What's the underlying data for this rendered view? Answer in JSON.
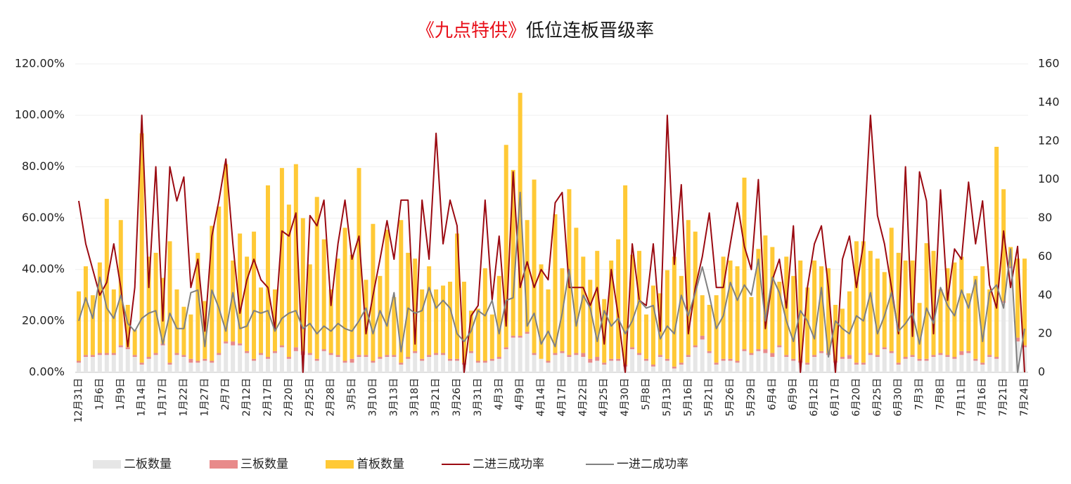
{
  "chart_data": {
    "type": "bar",
    "title": [
      "《九点特供》",
      "低位连板晋级率"
    ],
    "title_colors": [
      "#e8111b",
      "#1a1a1a"
    ],
    "categories": [
      "12月31日",
      null,
      null,
      "1月6日",
      null,
      null,
      "1月9日",
      null,
      null,
      "1月14日",
      null,
      null,
      "1月17日",
      null,
      null,
      "1月22日",
      null,
      null,
      "1月27日",
      null,
      null,
      "2月7日",
      null,
      null,
      "2月12日",
      null,
      null,
      "2月17日",
      null,
      null,
      "2月20日",
      null,
      null,
      "2月25日",
      null,
      null,
      "2月28日",
      null,
      null,
      "3月5日",
      null,
      null,
      "3月10日",
      null,
      null,
      "3月13日",
      null,
      null,
      "3月18日",
      null,
      null,
      "3月21日",
      null,
      null,
      "3月26日",
      null,
      null,
      "3月31日",
      null,
      null,
      "4月3日",
      null,
      null,
      "4月9日",
      null,
      null,
      "4月14日",
      null,
      null,
      "4月17日",
      null,
      null,
      "4月22日",
      null,
      null,
      "4月25日",
      null,
      null,
      "4月30日",
      null,
      null,
      "5月8日",
      null,
      null,
      "5月13日",
      null,
      null,
      "5月16日",
      null,
      null,
      "5月21日",
      null,
      null,
      "5月26日",
      null,
      null,
      "5月29日",
      null,
      null,
      "6月4日",
      null,
      null,
      "6月9日",
      null,
      null,
      "6月12日",
      null,
      null,
      "6月17日",
      null,
      null,
      "6月20日",
      null,
      null,
      "6月25日",
      null,
      null,
      "6月30日",
      null,
      null,
      "7月3日",
      null,
      null,
      "7月8日",
      null,
      null,
      "7月11日",
      null,
      null,
      "7月16日",
      null,
      null,
      "7月21日",
      null,
      null,
      "7月24日"
    ],
    "series": [
      {
        "name": "二板数量",
        "type": "bar",
        "axis": "y2",
        "color": "#e6e6e6",
        "values": [
          5,
          8,
          8,
          9,
          9,
          9,
          13,
          12,
          8,
          4,
          7,
          9,
          14,
          4,
          9,
          8,
          5,
          5,
          6,
          5,
          9,
          15,
          14,
          14,
          10,
          6,
          9,
          7,
          10,
          13,
          7,
          11,
          9,
          9,
          6,
          11,
          9,
          8,
          5,
          5,
          8,
          8,
          5,
          7,
          8,
          8,
          4,
          7,
          10,
          6,
          8,
          9,
          9,
          6,
          6,
          4,
          10,
          5,
          5,
          6,
          7,
          12,
          18,
          18,
          20,
          9,
          7,
          5,
          9,
          10,
          8,
          9,
          8,
          5,
          6,
          4,
          6,
          6,
          3,
          12,
          9,
          6,
          3,
          8,
          6,
          2,
          4,
          8,
          13,
          17,
          10,
          4,
          6,
          6,
          5,
          11,
          9,
          11,
          10,
          8,
          13,
          8,
          6,
          5,
          4,
          8,
          10,
          9,
          5,
          7,
          7,
          4,
          4,
          9,
          8,
          12,
          10,
          4,
          7,
          8,
          6,
          6,
          8,
          9,
          8,
          7,
          9,
          10,
          6,
          4,
          8,
          7,
          36,
          54,
          16,
          13
        ]
      },
      {
        "name": "三板数量",
        "type": "bar",
        "axis": "y2",
        "color": "#e88a8a",
        "values": [
          1,
          1,
          1,
          1,
          1,
          1,
          1,
          1,
          1,
          1,
          1,
          1,
          1,
          1,
          1,
          1,
          2,
          1,
          1,
          1,
          1,
          1,
          2,
          1,
          1,
          1,
          1,
          1,
          1,
          1,
          1,
          2,
          2,
          1,
          1,
          1,
          1,
          1,
          1,
          2,
          1,
          1,
          1,
          1,
          1,
          1,
          1,
          1,
          1,
          1,
          1,
          1,
          1,
          1,
          1,
          1,
          1,
          1,
          1,
          1,
          1,
          1,
          1,
          1,
          1,
          1,
          0,
          1,
          1,
          1,
          1,
          1,
          2,
          2,
          2,
          1,
          1,
          1,
          1,
          1,
          1,
          1,
          1,
          1,
          1,
          1,
          1,
          1,
          1,
          2,
          1,
          1,
          1,
          1,
          1,
          1,
          1,
          1,
          2,
          2,
          1,
          1,
          1,
          1,
          1,
          1,
          1,
          1,
          1,
          1,
          2,
          1,
          1,
          1,
          1,
          1,
          1,
          1,
          1,
          1,
          1,
          1,
          1,
          1,
          1,
          1,
          2,
          1,
          1,
          1,
          1,
          1,
          1,
          1,
          2,
          1
        ]
      },
      {
        "name": "首板数量",
        "type": "bar",
        "axis": "y2",
        "color": "#ffc936",
        "values": [
          36,
          46,
          31,
          47,
          80,
          33,
          65,
          22,
          13,
          119,
          52,
          52,
          34,
          63,
          33,
          25,
          23,
          56,
          30,
          70,
          76,
          92,
          42,
          57,
          49,
          66,
          34,
          89,
          32,
          92,
          79,
          95,
          69,
          46,
          84,
          57,
          33,
          50,
          69,
          54,
          97,
          39,
          71,
          42,
          65,
          30,
          74,
          54,
          48,
          36,
          46,
          33,
          35,
          40,
          65,
          42,
          21,
          27,
          48,
          23,
          42,
          105,
          86,
          126,
          58,
          90,
          49,
          37,
          72,
          43,
          86,
          65,
          50,
          41,
          55,
          33,
          51,
          62,
          93,
          48,
          53,
          23,
          41,
          32,
          46,
          57,
          45,
          70,
          59,
          21,
          24,
          35,
          53,
          51,
          49,
          89,
          29,
          52,
          59,
          55,
          33,
          51,
          43,
          52,
          39,
          49,
          44,
          44,
          29,
          25,
          33,
          63,
          63,
          53,
          50,
          39,
          64,
          57,
          50,
          49,
          29,
          60,
          54,
          33,
          45,
          49,
          49,
          30,
          43,
          50,
          34,
          109,
          58,
          10,
          41,
          45
        ]
      },
      {
        "name": "二进三成功率",
        "type": "line",
        "axis": "y",
        "color": "#9b0a12",
        "values": [
          66.7,
          50,
          40,
          30,
          35,
          50,
          33,
          10,
          33,
          100,
          33,
          80,
          20,
          80,
          66.7,
          76,
          33,
          44,
          16,
          53,
          66.7,
          83,
          50,
          23,
          36,
          44,
          36,
          33,
          17,
          55,
          53,
          62,
          0,
          61,
          57,
          67,
          26,
          50,
          67,
          44,
          53,
          15,
          30,
          44,
          59,
          44,
          67,
          67,
          11,
          67,
          44,
          93,
          50,
          67,
          57,
          0,
          22,
          26,
          67,
          28,
          53,
          18,
          78,
          33,
          43,
          33,
          40,
          36,
          66,
          70,
          33,
          33,
          33,
          26,
          33,
          11,
          40,
          22,
          0,
          50,
          28,
          26,
          50,
          16,
          100,
          42,
          73,
          15,
          33,
          45,
          62,
          33,
          33,
          50,
          66,
          49,
          40,
          75,
          17,
          36,
          44,
          25,
          57,
          0,
          33,
          50,
          57,
          33,
          0,
          44,
          53,
          33,
          50,
          100,
          61,
          50,
          33,
          15,
          80,
          14,
          78,
          66.7,
          15,
          71,
          28,
          48,
          44,
          74,
          50,
          66.7,
          34,
          25,
          55,
          33,
          49,
          0
        ]
      },
      {
        "name": "一进二成功率",
        "type": "line",
        "axis": "y",
        "color": "#808080",
        "values": [
          20,
          29,
          21,
          37,
          25,
          21,
          30,
          19,
          16,
          21,
          23,
          24,
          11,
          23,
          17,
          17,
          31,
          32,
          10,
          32,
          25,
          16,
          31,
          17,
          18,
          24,
          23,
          24,
          16,
          21,
          23,
          24,
          17,
          19,
          15,
          18,
          16,
          19,
          17,
          16,
          20,
          25,
          15,
          24,
          18,
          31,
          8,
          25,
          23,
          24,
          33,
          25,
          28,
          25,
          15,
          12,
          16,
          24,
          22,
          28,
          15,
          28,
          29,
          70,
          18,
          23,
          11,
          16,
          10,
          23,
          40,
          18,
          30,
          25,
          12,
          24,
          18,
          21,
          15,
          20,
          28,
          25,
          26,
          13,
          18,
          15,
          30,
          22,
          31,
          41,
          30,
          17,
          22,
          35,
          28,
          34,
          30,
          44,
          20,
          37,
          31,
          20,
          12,
          24,
          20,
          13,
          33,
          6,
          20,
          17,
          15,
          22,
          20,
          31,
          15,
          22,
          31,
          16,
          19,
          23,
          11,
          25,
          19,
          33,
          26,
          22,
          32,
          25,
          36,
          12,
          31,
          34,
          25,
          48,
          0,
          17
        ]
      }
    ],
    "ylim": [
      0,
      120
    ],
    "yticks": [
      {
        "value": 0,
        "label": "0.00%"
      },
      {
        "value": 20,
        "label": "20.00%"
      },
      {
        "value": 40,
        "label": "40.00%"
      },
      {
        "value": 60,
        "label": "60.00%"
      },
      {
        "value": 80,
        "label": "80.00%"
      },
      {
        "value": 100,
        "label": "100.00%"
      },
      {
        "value": 120,
        "label": "120.00%"
      }
    ],
    "y2lim": [
      0,
      160
    ],
    "y2ticks": [
      0,
      20,
      40,
      60,
      80,
      100,
      120,
      140,
      160
    ],
    "grid": true,
    "legend": "bottom"
  }
}
